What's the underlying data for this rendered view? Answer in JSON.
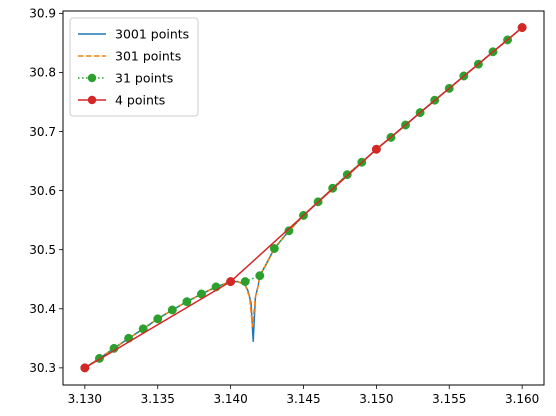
{
  "chart_data": {
    "type": "line",
    "title": "",
    "xlabel": "",
    "ylabel": "",
    "xlim": [
      3.1285,
      3.1615
    ],
    "ylim": [
      30.271,
      30.904
    ],
    "xticks": [
      3.13,
      3.135,
      3.14,
      3.145,
      3.15,
      3.155,
      3.16
    ],
    "xtick_labels": [
      "3.130",
      "3.135",
      "3.140",
      "3.145",
      "3.150",
      "3.155",
      "3.160"
    ],
    "yticks": [
      30.3,
      30.4,
      30.5,
      30.6,
      30.7,
      30.8,
      30.9
    ],
    "ytick_labels": [
      "30.3",
      "30.4",
      "30.5",
      "30.6",
      "30.7",
      "30.8",
      "30.9"
    ],
    "grid": false,
    "legend_position": "top-left",
    "series": [
      {
        "name": "3001 points",
        "color": "#1f77b4",
        "linestyle": "solid",
        "marker": "none",
        "x": [
          3.13,
          3.131,
          3.132,
          3.133,
          3.134,
          3.135,
          3.136,
          3.137,
          3.138,
          3.139,
          3.14,
          3.1405,
          3.141,
          3.1412,
          3.1414,
          3.14155,
          3.1417,
          3.1419,
          3.142,
          3.1425,
          3.143,
          3.144,
          3.145,
          3.146,
          3.147,
          3.148,
          3.149,
          3.15,
          3.151,
          3.152,
          3.153,
          3.154,
          3.155,
          3.156,
          3.157,
          3.158,
          3.159,
          3.16
        ],
        "y": [
          30.3,
          30.316,
          30.333,
          30.35,
          30.366,
          30.383,
          30.398,
          30.412,
          30.425,
          30.437,
          30.446,
          30.446,
          30.44,
          30.43,
          30.41,
          30.345,
          30.42,
          30.44,
          30.456,
          30.478,
          30.502,
          30.532,
          30.558,
          30.581,
          30.604,
          30.627,
          30.648,
          30.67,
          30.69,
          30.711,
          30.732,
          30.753,
          30.773,
          30.794,
          30.814,
          30.835,
          30.855,
          30.876
        ]
      },
      {
        "name": "301 points",
        "color": "#ff7f0e",
        "linestyle": "dashed",
        "marker": "none",
        "x": [
          3.13,
          3.131,
          3.132,
          3.133,
          3.134,
          3.135,
          3.136,
          3.137,
          3.138,
          3.139,
          3.14,
          3.1405,
          3.141,
          3.1413,
          3.1415,
          3.1417,
          3.1419,
          3.142,
          3.1425,
          3.143,
          3.144,
          3.145,
          3.146,
          3.147,
          3.148,
          3.149,
          3.15,
          3.151,
          3.152,
          3.153,
          3.154,
          3.155,
          3.156,
          3.157,
          3.158,
          3.159,
          3.16
        ],
        "y": [
          30.3,
          30.316,
          30.333,
          30.35,
          30.366,
          30.383,
          30.398,
          30.412,
          30.425,
          30.437,
          30.446,
          30.446,
          30.44,
          30.42,
          30.37,
          30.42,
          30.44,
          30.456,
          30.478,
          30.502,
          30.532,
          30.558,
          30.581,
          30.604,
          30.627,
          30.648,
          30.67,
          30.69,
          30.711,
          30.732,
          30.753,
          30.773,
          30.794,
          30.814,
          30.835,
          30.855,
          30.876
        ]
      },
      {
        "name": "31 points",
        "color": "#2ca02c",
        "linestyle": "dotted",
        "marker": "circle",
        "x": [
          3.13,
          3.131,
          3.132,
          3.133,
          3.134,
          3.135,
          3.136,
          3.137,
          3.138,
          3.139,
          3.14,
          3.141,
          3.142,
          3.143,
          3.144,
          3.145,
          3.146,
          3.147,
          3.148,
          3.149,
          3.15,
          3.151,
          3.152,
          3.153,
          3.154,
          3.155,
          3.156,
          3.157,
          3.158,
          3.159,
          3.16
        ],
        "y": [
          30.3,
          30.316,
          30.333,
          30.35,
          30.366,
          30.383,
          30.398,
          30.412,
          30.425,
          30.437,
          30.446,
          30.446,
          30.456,
          30.502,
          30.532,
          30.558,
          30.581,
          30.604,
          30.627,
          30.648,
          30.67,
          30.69,
          30.711,
          30.732,
          30.753,
          30.773,
          30.794,
          30.814,
          30.835,
          30.855,
          30.876
        ]
      },
      {
        "name": "4 points",
        "color": "#d62728",
        "linestyle": "solid",
        "marker": "circle",
        "x": [
          3.13,
          3.14,
          3.15,
          3.16
        ],
        "y": [
          30.3,
          30.446,
          30.67,
          30.876
        ]
      }
    ]
  }
}
